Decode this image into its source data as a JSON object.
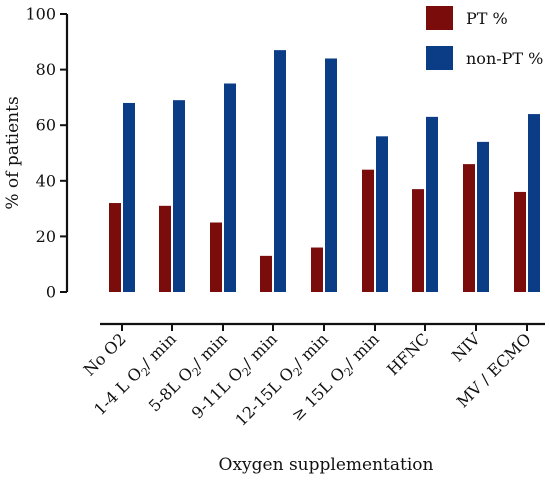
{
  "chart_data": {
    "type": "bar",
    "categories": [
      {
        "main": "No O2",
        "sub": "",
        "rest": ""
      },
      {
        "main": "1-4 L O",
        "sub": "2",
        "rest": "/ min"
      },
      {
        "main": "5-8L O",
        "sub": "2",
        "rest": "/ min"
      },
      {
        "main": "9-11L O",
        "sub": "2",
        "rest": "/ min"
      },
      {
        "main": "12-15L O",
        "sub": "2",
        "rest": "/ min"
      },
      {
        "main": "≥ 15L O",
        "sub": "2",
        "rest": "/ min"
      },
      {
        "main": "HFNC",
        "sub": "",
        "rest": ""
      },
      {
        "main": "NIV",
        "sub": "",
        "rest": ""
      },
      {
        "main": "MV / ECMO",
        "sub": "",
        "rest": ""
      }
    ],
    "series": [
      {
        "name": "PT %",
        "color": "#7a0c0c",
        "values": [
          32,
          31,
          25,
          13,
          16,
          44,
          37,
          46,
          36
        ]
      },
      {
        "name": "non-PT %",
        "color": "#0b3c86",
        "values": [
          68,
          69,
          75,
          87,
          84,
          56,
          63,
          54,
          64
        ]
      }
    ],
    "xlabel": "Oxygen supplementation",
    "ylabel": "% of patients",
    "ylim": [
      0,
      100
    ],
    "yticks": [
      0,
      20,
      40,
      60,
      80,
      100
    ],
    "legend_position": "top-right",
    "grid": false
  }
}
